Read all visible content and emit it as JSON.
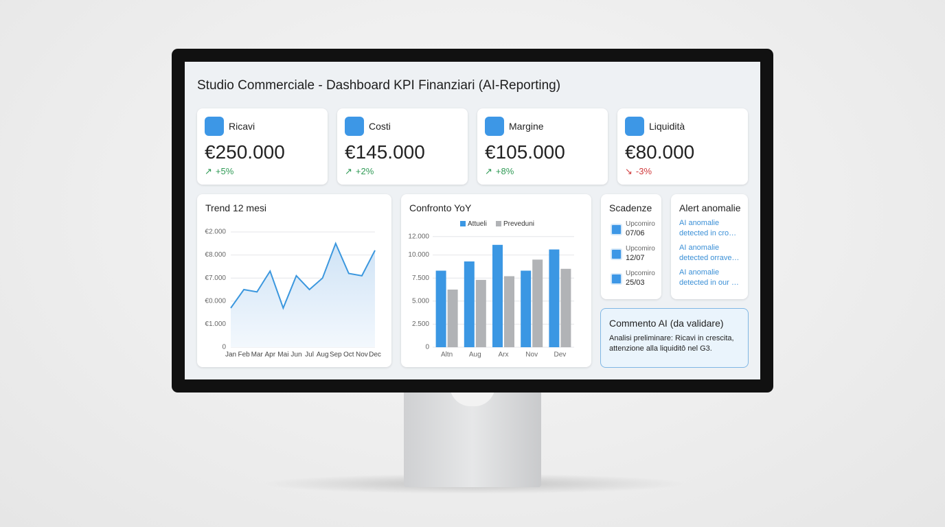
{
  "header": {
    "title": "Studio Commerciale - Dashboard KPI Finanziari (AI-Reporting)"
  },
  "kpis": [
    {
      "label": "Ricavi",
      "value": "€250.000",
      "change": "+5%"
    },
    {
      "label": "Costi",
      "value": "€145.000",
      "change": "+2%"
    },
    {
      "label": "Margine",
      "value": "€105.000",
      "change": "+8%"
    },
    {
      "label": "Liquidità",
      "value": "€80.000",
      "change": "-3%"
    }
  ],
  "chart_data": [
    {
      "type": "line",
      "title": "Trend 12 mesi",
      "categories": [
        "Jan",
        "Feb",
        "Mar",
        "Apr",
        "Mai",
        "Jun",
        "Jul",
        "Aug",
        "Sep",
        "Oct",
        "Nov",
        "Dec"
      ],
      "values": [
        1.7,
        2.5,
        2.4,
        3.3,
        1.7,
        3.1,
        2.5,
        3.0,
        4.5,
        3.2,
        3.1,
        4.2
      ],
      "color": "#3b97de",
      "ylim": [
        0,
        5
      ],
      "yticks": [
        {
          "value": 5,
          "label": "€2.000"
        },
        {
          "value": 4,
          "label": "€8.000"
        },
        {
          "value": 3,
          "label": "€7.000"
        },
        {
          "value": 2,
          "label": "€0.000"
        },
        {
          "value": 1,
          "label": "€1.000"
        },
        0
      ],
      "grid": true
    },
    {
      "type": "bar",
      "title": "Confronto YoY",
      "categories": [
        "Altn",
        "Aug",
        "Arx",
        "Nov",
        "Dev"
      ],
      "series": [
        {
          "name": "Attueli",
          "color": "#3b97e3",
          "values": [
            8300,
            9300,
            11100,
            8300,
            10600
          ]
        },
        {
          "name": "Preveduni",
          "color": "#b1b3b6",
          "values": [
            6250,
            7300,
            7700,
            9500,
            8500
          ]
        }
      ],
      "ylim": [
        0,
        12500
      ],
      "yticks": [
        0,
        {
          "value": 2500,
          "label": "2.500"
        },
        {
          "value": 5000,
          "label": "5.000"
        },
        {
          "value": 7500,
          "label": "7.500"
        },
        {
          "value": 10000,
          "label": "10.000"
        },
        {
          "value": 12000,
          "label": "12.000"
        }
      ],
      "grid": true,
      "legend": "top"
    }
  ],
  "deadlines": {
    "title": "Scadenze",
    "items": [
      {
        "label": "Upcomiro",
        "date": "07/06"
      },
      {
        "label": "Upcomiro",
        "date": "12/07"
      },
      {
        "label": "Upcomiro",
        "date": "25/03"
      }
    ]
  },
  "alerts": {
    "title": "Alert anomalie",
    "items": [
      "AI anomalie detected in cro…",
      "AI anomalie detected orrave…",
      "AI anomalie detected in our …"
    ]
  },
  "comment": {
    "title": "Commento AI (da validare)",
    "text": "Analisi preliminare: Ricavi in crescita, attenzione alla liquiditô nel G3."
  }
}
